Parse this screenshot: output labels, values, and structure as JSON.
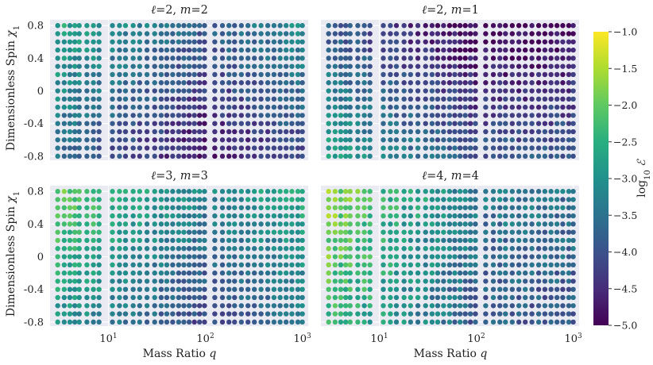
{
  "chart_data": {
    "type": "scatter",
    "x_scale": "log",
    "xlim": [
      2.5,
      1150
    ],
    "ylim": [
      -0.85,
      0.87
    ],
    "xlabel_main": "Mass Ratio ",
    "xlabel_var": "q",
    "ylabel_main": "Dimensionless Spin ",
    "ylabel_var": "χ",
    "ylabel_sub": "1",
    "x_ticks": [
      {
        "value": 10,
        "base": "10",
        "exp": "1"
      },
      {
        "value": 100,
        "base": "10",
        "exp": "2"
      },
      {
        "value": 1000,
        "base": "10",
        "exp": "3"
      }
    ],
    "y_ticks": [
      {
        "value": 0.8,
        "label": "0.8"
      },
      {
        "value": 0.4,
        "label": "0.4"
      },
      {
        "value": 0,
        "label": "0"
      },
      {
        "value": -0.4,
        "label": "-0.4"
      },
      {
        "value": -0.8,
        "label": "-0.8"
      }
    ],
    "x_grid_values": [
      3,
      3.5,
      4,
      4.5,
      5,
      6,
      7,
      8,
      11,
      13,
      15,
      18,
      21,
      25,
      30,
      35,
      40,
      46,
      53,
      60,
      68,
      77,
      87,
      98,
      125,
      150,
      175,
      200,
      235,
      275,
      320,
      375,
      440,
      510,
      590,
      680,
      780,
      900,
      1000
    ],
    "y_grid_values": [
      0.8,
      0.7,
      0.6,
      0.5,
      0.4,
      0.3,
      0.2,
      0.1,
      0.0,
      -0.1,
      -0.2,
      -0.3,
      -0.4,
      -0.5,
      -0.6,
      -0.7,
      -0.8
    ],
    "panels": [
      {
        "title_ell": "ℓ",
        "title_l": "2",
        "title_sep": ", ",
        "title_m_var": "m",
        "title_m": "2",
        "log10E_start": -3.1,
        "log10E_q100": -4.3,
        "log10E_end": -3.6,
        "spin_slope": 0.6,
        "jitter": 0.35
      },
      {
        "title_ell": "ℓ",
        "title_l": "2",
        "title_sep": ", ",
        "title_m_var": "m",
        "title_m": "1",
        "log10E_start": -3.3,
        "log10E_q100": -4.5,
        "log10E_end": -4.4,
        "spin_slope": -0.7,
        "jitter": 0.35
      },
      {
        "title_ell": "ℓ",
        "title_l": "3",
        "title_sep": ", ",
        "title_m_var": "m",
        "title_m": "3",
        "log10E_start": -2.4,
        "log10E_q100": -3.7,
        "log10E_end": -3.0,
        "spin_slope": 0.6,
        "jitter": 0.35
      },
      {
        "title_ell": "ℓ",
        "title_l": "4",
        "title_sep": ", ",
        "title_m_var": "m",
        "title_m": "4",
        "log10E_start": -2.0,
        "log10E_q100": -3.6,
        "log10E_end": -3.7,
        "spin_slope": 0.3,
        "jitter": 0.45
      }
    ],
    "colorbar": {
      "label_main": "log",
      "label_sub": "10",
      "label_var": " ℰ",
      "min": -5.0,
      "max": -1.0,
      "ticks": [
        {
          "value": -1.0,
          "label": "−1.0"
        },
        {
          "value": -1.5,
          "label": "−1.5"
        },
        {
          "value": -2.0,
          "label": "−2.0"
        },
        {
          "value": -2.5,
          "label": "−2.5"
        },
        {
          "value": -3.0,
          "label": "−3.0"
        },
        {
          "value": -3.5,
          "label": "−3.5"
        },
        {
          "value": -4.0,
          "label": "−4.0"
        },
        {
          "value": -4.5,
          "label": "−4.5"
        },
        {
          "value": -5.0,
          "label": "−5.0"
        }
      ],
      "colormap": "viridis"
    },
    "colors": {
      "panel_bg": "#eaeaf2",
      "grid": "#ffffff"
    }
  }
}
